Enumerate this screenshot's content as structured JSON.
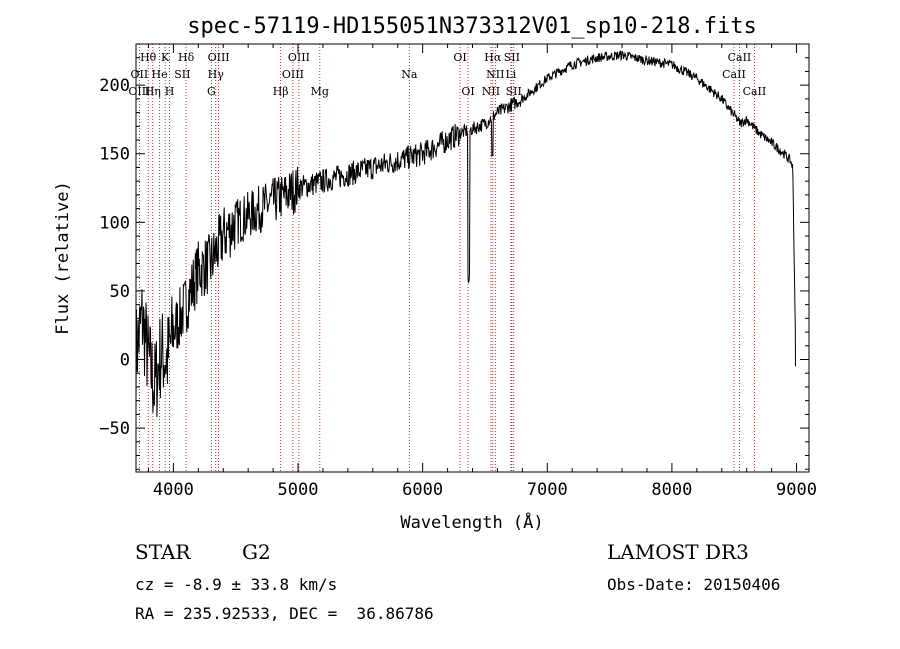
{
  "chart_data": {
    "type": "line",
    "title": "spec-57119-HD155051N373312V01_sp10-218.fits",
    "xlabel": "Wavelength (Å)",
    "ylabel": "Flux (relative)",
    "xlim": [
      3700,
      9100
    ],
    "ylim": [
      -82,
      230
    ],
    "xticks": [
      4000,
      5000,
      6000,
      7000,
      8000,
      9000
    ],
    "yticks": [
      -50,
      0,
      50,
      100,
      150,
      200
    ],
    "series": [
      {
        "name": "flux",
        "x": [
          3700,
          3750,
          3800,
          3850,
          3900,
          3950,
          4000,
          4100,
          4200,
          4300,
          4400,
          4500,
          4600,
          4700,
          4800,
          4900,
          5000,
          5200,
          5400,
          5600,
          5800,
          6000,
          6200,
          6300,
          6400,
          6500,
          6600,
          6700,
          6800,
          7000,
          7200,
          7400,
          7600,
          7800,
          8000,
          8200,
          8400,
          8500,
          8550,
          8600,
          8700,
          8800,
          8900,
          8950,
          8970,
          8990
        ],
        "values": [
          5,
          30,
          0,
          -20,
          5,
          0,
          20,
          40,
          65,
          70,
          90,
          100,
          105,
          110,
          115,
          120,
          125,
          130,
          135,
          140,
          145,
          150,
          160,
          165,
          168,
          172,
          180,
          185,
          190,
          205,
          215,
          220,
          222,
          218,
          215,
          205,
          190,
          178,
          172,
          175,
          165,
          158,
          150,
          145,
          140,
          25
        ]
      }
    ],
    "spectral_lines": [
      {
        "label": "Hθ",
        "wave": 3798,
        "row": 0
      },
      {
        "label": "K",
        "wave": 3934,
        "row": 0
      },
      {
        "label": "Hδ",
        "wave": 4102,
        "row": 0
      },
      {
        "label": "OIII",
        "wave": 4363,
        "row": 0
      },
      {
        "label": "OIII",
        "wave": 5007,
        "row": 0
      },
      {
        "label": "OI",
        "wave": 6300,
        "row": 0
      },
      {
        "label": "Hα",
        "wave": 6563,
        "row": 0
      },
      {
        "label": "SII",
        "wave": 6716,
        "row": 0
      },
      {
        "label": "CaII",
        "wave": 8542,
        "row": 0
      },
      {
        "label": "OII",
        "wave": 3727,
        "row": 1
      },
      {
        "label": "He",
        "wave": 3889,
        "row": 1
      },
      {
        "label": "SII",
        "wave": 4072,
        "row": 1
      },
      {
        "label": "Hγ",
        "wave": 4340,
        "row": 1
      },
      {
        "label": "OIII",
        "wave": 4959,
        "row": 1
      },
      {
        "label": "Na",
        "wave": 5893,
        "row": 1
      },
      {
        "label": "NII",
        "wave": 6583,
        "row": 1
      },
      {
        "label": "Li",
        "wave": 6708,
        "row": 1
      },
      {
        "label": "CaII",
        "wave": 8498,
        "row": 1
      },
      {
        "label": "OIII",
        "wave": 3727,
        "row": 2
      },
      {
        "label": "Hη",
        "wave": 3835,
        "row": 2
      },
      {
        "label": "H",
        "wave": 3969,
        "row": 2
      },
      {
        "label": "G",
        "wave": 4305,
        "row": 2
      },
      {
        "label": "Hβ",
        "wave": 4861,
        "row": 2
      },
      {
        "label": "Mg",
        "wave": 5175,
        "row": 2
      },
      {
        "label": "OI",
        "wave": 6364,
        "row": 2
      },
      {
        "label": "NII",
        "wave": 6548,
        "row": 2
      },
      {
        "label": "SII",
        "wave": 6731,
        "row": 2
      },
      {
        "label": "CaII",
        "wave": 8662,
        "row": 2
      }
    ],
    "dotted_line_waves": [
      3727,
      3798,
      3835,
      3889,
      3934,
      3969,
      4102,
      4305,
      4340,
      4363,
      4861,
      4959,
      5007,
      5175,
      5893,
      6300,
      6364,
      6548,
      6563,
      6583,
      6708,
      6716,
      6731,
      8498,
      8542,
      8662
    ],
    "line_color": "#000000",
    "marker_color": "#b00000"
  },
  "info": {
    "object_class": "STAR",
    "subclass": "G2",
    "survey": "LAMOST DR3",
    "redshift": "cz = -8.9 ± 33.8 km/s",
    "obs_date": "Obs-Date: 20150406",
    "coords": "RA = 235.92533, DEC =  36.86786"
  }
}
